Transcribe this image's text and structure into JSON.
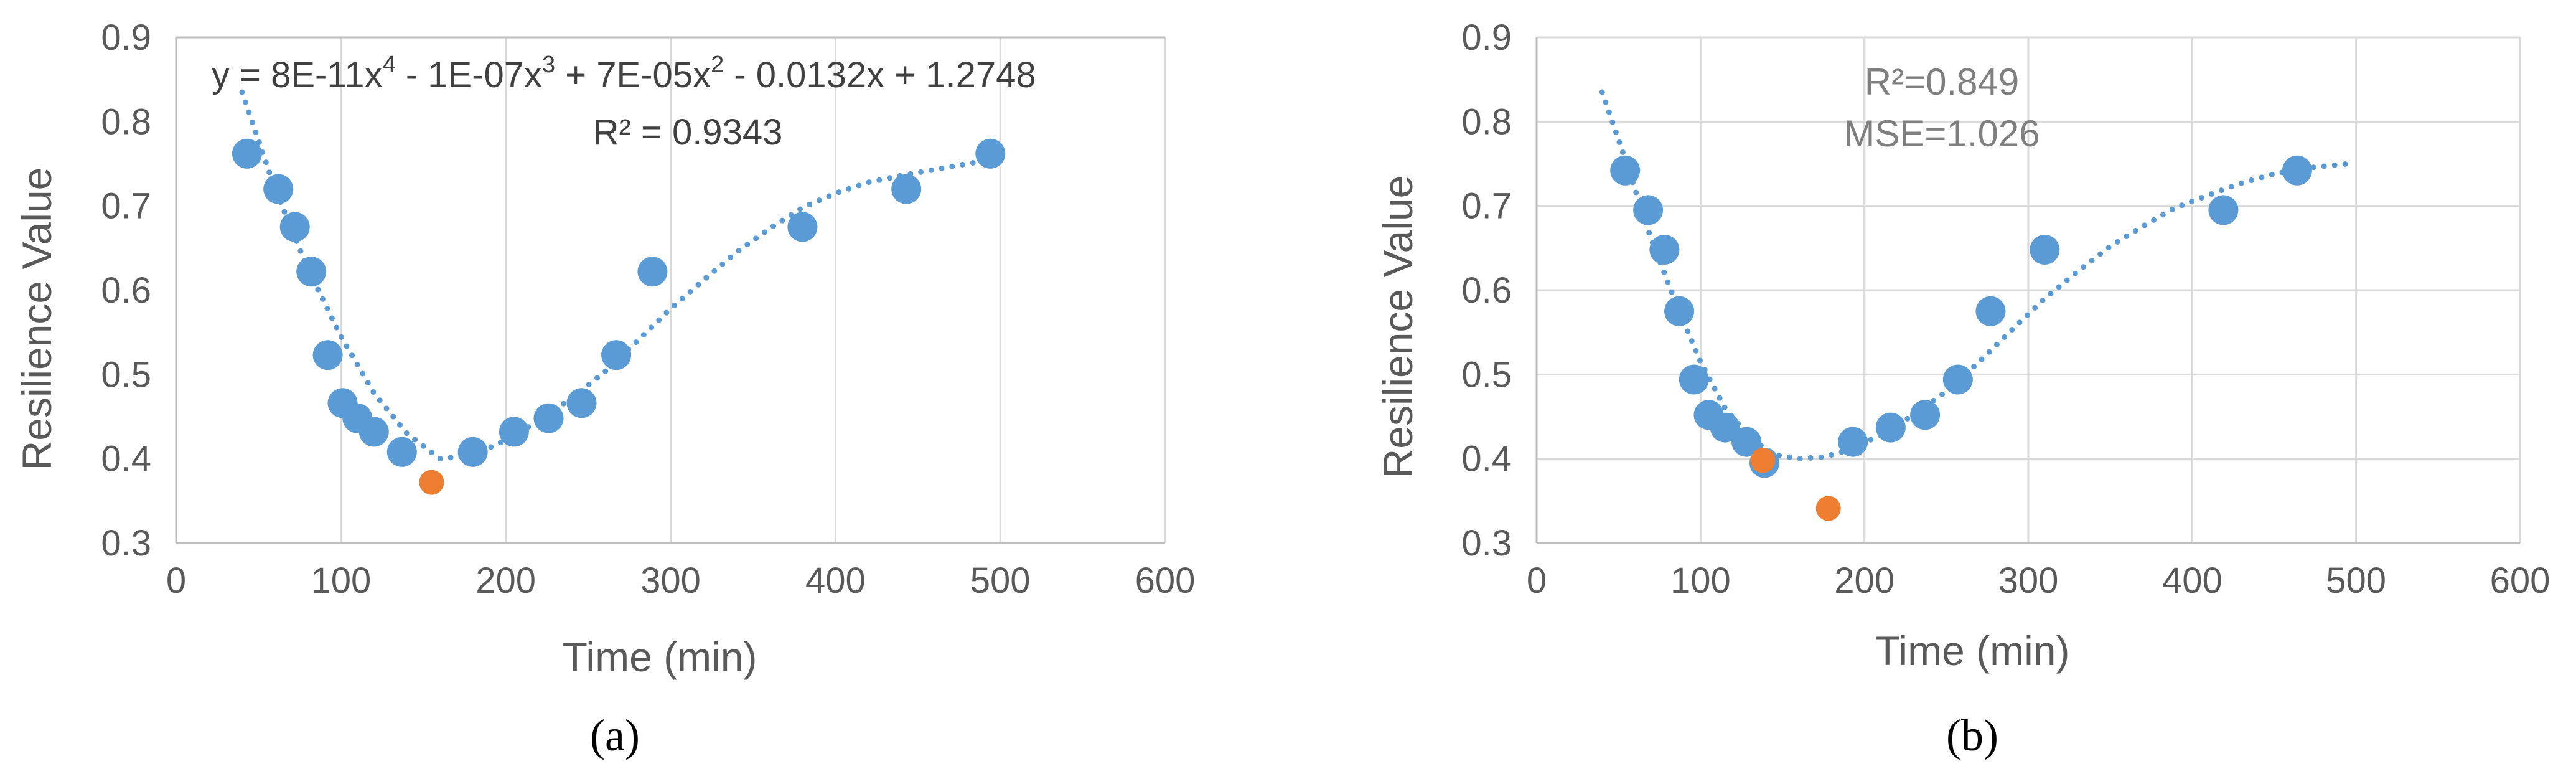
{
  "chart_data": [
    {
      "type": "scatter",
      "caption": "(a)",
      "xlabel": "Time (min)",
      "ylabel": "Resilience Value",
      "xlim": [
        0,
        600
      ],
      "ylim": [
        0.3,
        0.9
      ],
      "xticks": [
        "0",
        "100",
        "200",
        "300",
        "400",
        "500",
        "600"
      ],
      "yticks": [
        "0.3",
        "0.4",
        "0.5",
        "0.6",
        "0.7",
        "0.8",
        "0.9"
      ],
      "grid": "vertical",
      "legend": "none",
      "annotations": {
        "equation": "y = 8E-11x4 - 1E-07x3 + 7E-05x2 - 0.0132x + 1.2748",
        "eq_parts": [
          "y = 8E-11x",
          "4",
          " - 1E-07x",
          "3",
          " + 7E-05x",
          "2",
          " - 0.0132x + 1.2748"
        ],
        "r2": "R² = 0.9343"
      },
      "series": [
        {
          "color": "#5b9bd5",
          "points": [
            [
              43,
              0.762
            ],
            [
              62,
              0.72
            ],
            [
              72,
              0.675
            ],
            [
              82,
              0.622
            ],
            [
              92,
              0.523
            ],
            [
              101,
              0.466
            ],
            [
              110,
              0.448
            ],
            [
              120,
              0.432
            ],
            [
              137,
              0.408
            ],
            [
              180,
              0.408
            ],
            [
              205,
              0.432
            ],
            [
              226,
              0.448
            ],
            [
              246,
              0.466
            ],
            [
              267,
              0.523
            ],
            [
              289,
              0.622
            ],
            [
              380,
              0.675
            ],
            [
              443,
              0.72
            ],
            [
              494,
              0.762
            ]
          ]
        },
        {
          "color": "#ed7d31",
          "points": [
            [
              155,
              0.372
            ]
          ]
        }
      ],
      "trendline": {
        "color": "#5b9bd5",
        "style": "dotted",
        "points": [
          [
            40,
            0.835
          ],
          [
            60,
            0.72
          ],
          [
            80,
            0.625
          ],
          [
            100,
            0.545
          ],
          [
            120,
            0.478
          ],
          [
            140,
            0.43
          ],
          [
            160,
            0.4
          ],
          [
            180,
            0.404
          ],
          [
            200,
            0.422
          ],
          [
            220,
            0.445
          ],
          [
            240,
            0.472
          ],
          [
            260,
            0.503
          ],
          [
            280,
            0.54
          ],
          [
            300,
            0.578
          ],
          [
            320,
            0.612
          ],
          [
            340,
            0.645
          ],
          [
            360,
            0.673
          ],
          [
            380,
            0.698
          ],
          [
            400,
            0.715
          ],
          [
            420,
            0.728
          ],
          [
            440,
            0.736
          ],
          [
            460,
            0.743
          ],
          [
            480,
            0.75
          ],
          [
            495,
            0.755
          ]
        ]
      }
    },
    {
      "type": "scatter",
      "caption": "(b)",
      "xlabel": "Time (min)",
      "ylabel": "Resilience Value",
      "xlim": [
        0,
        600
      ],
      "ylim": [
        0.3,
        0.9
      ],
      "xticks": [
        "0",
        "100",
        "200",
        "300",
        "400",
        "500",
        "600"
      ],
      "yticks": [
        "0.3",
        "0.4",
        "0.5",
        "0.6",
        "0.7",
        "0.8",
        "0.9"
      ],
      "grid": "both",
      "legend": "none",
      "annotations": {
        "r2": "R²=0.849",
        "mse": "MSE=1.026"
      },
      "series": [
        {
          "color": "#5b9bd5",
          "points": [
            [
              54,
              0.742
            ],
            [
              68,
              0.695
            ],
            [
              78,
              0.648
            ],
            [
              87,
              0.575
            ],
            [
              96,
              0.494
            ],
            [
              105,
              0.452
            ],
            [
              115,
              0.437
            ],
            [
              128,
              0.42
            ],
            [
              139,
              0.395
            ],
            [
              193,
              0.42
            ],
            [
              216,
              0.437
            ],
            [
              237,
              0.452
            ],
            [
              257,
              0.494
            ],
            [
              277,
              0.575
            ],
            [
              310,
              0.648
            ],
            [
              419,
              0.695
            ],
            [
              464,
              0.742
            ]
          ]
        },
        {
          "color": "#ed7d31",
          "points": [
            [
              138,
              0.398
            ],
            [
              178,
              0.341
            ]
          ]
        }
      ],
      "trendline": {
        "color": "#5b9bd5",
        "style": "dotted",
        "points": [
          [
            40,
            0.835
          ],
          [
            55,
            0.75
          ],
          [
            70,
            0.66
          ],
          [
            85,
            0.585
          ],
          [
            100,
            0.515
          ],
          [
            115,
            0.46
          ],
          [
            130,
            0.425
          ],
          [
            145,
            0.405
          ],
          [
            160,
            0.4
          ],
          [
            175,
            0.402
          ],
          [
            190,
            0.41
          ],
          [
            210,
            0.428
          ],
          [
            230,
            0.452
          ],
          [
            250,
            0.48
          ],
          [
            270,
            0.515
          ],
          [
            290,
            0.553
          ],
          [
            310,
            0.59
          ],
          [
            330,
            0.622
          ],
          [
            350,
            0.652
          ],
          [
            370,
            0.676
          ],
          [
            390,
            0.698
          ],
          [
            410,
            0.713
          ],
          [
            430,
            0.727
          ],
          [
            450,
            0.738
          ],
          [
            470,
            0.745
          ],
          [
            495,
            0.75
          ]
        ]
      }
    }
  ]
}
